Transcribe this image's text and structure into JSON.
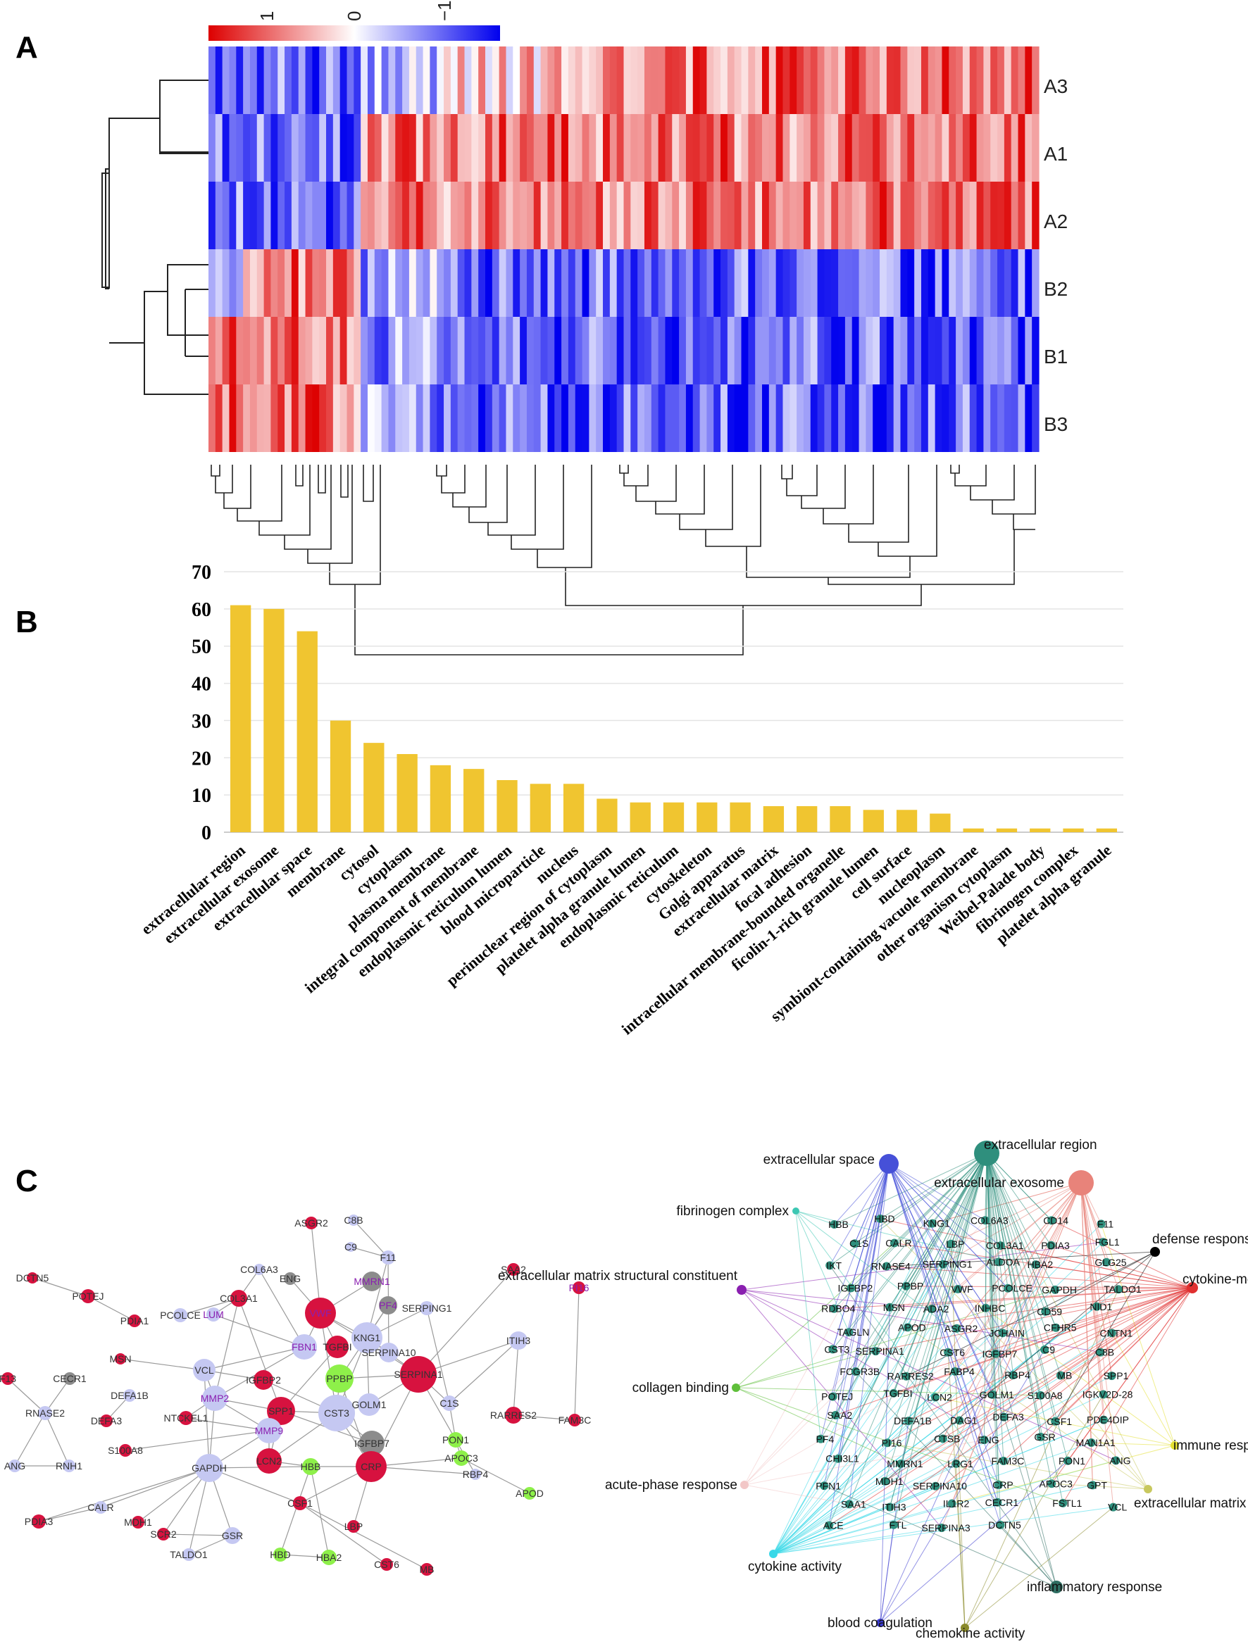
{
  "panels": {
    "a": "A",
    "b": "B",
    "c": "C"
  },
  "heatmap": {
    "colorbar_labels": [
      "1",
      "0",
      "−1"
    ],
    "rows": [
      "A3",
      "A1",
      "A2",
      "B2",
      "B1",
      "B3"
    ],
    "colors": {
      "high": "#dd0000",
      "mid": "#ffffff",
      "low": "#0000ee"
    }
  },
  "chart_data": [
    {
      "type": "heatmap",
      "title": "",
      "rows": [
        "A3",
        "A1",
        "A2",
        "B2",
        "B1",
        "B3"
      ],
      "value_range": [
        -1,
        1
      ],
      "n_columns": 120,
      "row_groups": {
        "A": [
          "A3",
          "A1",
          "A2"
        ],
        "B": [
          "B2",
          "B1",
          "B3"
        ]
      }
    },
    {
      "type": "bar",
      "title": "",
      "xlabel": "",
      "ylabel": "",
      "ylim": [
        0,
        70
      ],
      "yticks": [
        0,
        10,
        20,
        30,
        40,
        50,
        60,
        70
      ],
      "bar_color": "#f0c530",
      "categories": [
        "extracellular region",
        "extracellular exosome",
        "extracellular space",
        "membrane",
        "cytosol",
        "cytoplasm",
        "plasma membrane",
        "integral component of membrane",
        "endoplasmic reticulum lumen",
        "blood microparticle",
        "nucleus",
        "perinuclear region of cytoplasm",
        "platelet alpha granule lumen",
        "endoplasmic reticulum",
        "cytoskeleton",
        "Golgi apparatus",
        "extracellular matrix",
        "focal adhesion",
        "intracellular membrane-bounded organelle",
        "ficolin-1-rich granule lumen",
        "cell surface",
        "nucleoplasm",
        "symbiont-containing vacuole membrane",
        "other organism cytoplasm",
        "Weibel-Palade body",
        "fibrinogen complex",
        "platelet alpha granule"
      ],
      "values": [
        61,
        60,
        54,
        30,
        24,
        21,
        18,
        17,
        14,
        13,
        13,
        9,
        8,
        8,
        8,
        8,
        7,
        7,
        7,
        6,
        6,
        5,
        1,
        1,
        1,
        1,
        1
      ]
    }
  ],
  "network": {
    "colors": {
      "red": "#d7123f",
      "lavender": "#c5c8f2",
      "gray": "#8c8c8c",
      "green": "#8ef04a",
      "purple_text": "#8a1fb0"
    },
    "nodes": [
      "ASGR2",
      "C8B",
      "C9",
      "F11",
      "COL6A3",
      "ENG",
      "MMRN1",
      "PF4",
      "SERPING1",
      "SAA2",
      "PI16",
      "DCTN5",
      "POTEJ",
      "PDIA1",
      "PCOLCE",
      "LUM",
      "COL3A1",
      "VWF",
      "KNG1",
      "SERPINA10",
      "FBN1",
      "TGFBI",
      "ITIH3",
      "F13",
      "CECR1",
      "MSN",
      "VCL",
      "IGFBP2",
      "PPBP",
      "SERPINA1",
      "DEFA1B",
      "MMP2",
      "SPP1",
      "CST3",
      "GOLM1",
      "C1S",
      "RARRES2",
      "FAM3C",
      "RNASE2",
      "DEFA3",
      "NTCKEL1",
      "IGFBP7",
      "PON1",
      "ANG",
      "RNH1",
      "S100A8",
      "MMP9",
      "LCN2",
      "APOC3",
      "CRP",
      "GAPDH",
      "HBB",
      "RBP4",
      "APOD",
      "CALR",
      "PDIA3",
      "MDH1",
      "SCR2",
      "GSR",
      "TALDO1",
      "HBD",
      "HBA2",
      "CSF1",
      "LBP",
      "CST6",
      "MB"
    ]
  },
  "go_network": {
    "go_terms": [
      "extracellular space",
      "extracellular region",
      "extracellular exosome",
      "fibrinogen complex",
      "defense response to fungus",
      "extracellular matrix structural constituent",
      "cytokine-mediated signaling pathway",
      "collagen binding",
      "immune response",
      "acute-phase response",
      "extracellular matrix organization",
      "cytokine activity",
      "inflammatory response",
      "blood coagulation",
      "chemokine activity"
    ],
    "genes": [
      "HBB",
      "HBD",
      "KNG1",
      "COL6A3",
      "CD14",
      "F11",
      "C1S",
      "CALR",
      "LBP",
      "COL3A1",
      "PDIA3",
      "FGL1",
      "IKT",
      "RNASE4",
      "SERPING1",
      "ALDOA",
      "HBA2",
      "GLG25",
      "IGFBP2",
      "PPBP",
      "VWF",
      "PCOLCE",
      "GAPDH",
      "TALDO1",
      "RDBO4",
      "MSN",
      "ADA2",
      "INHBC",
      "CD59",
      "NID1",
      "TAGLN",
      "APOD",
      "ASGR2",
      "JCHAIN",
      "CFHR5",
      "CNTN1",
      "CST3",
      "SERPINA1",
      "CST6",
      "IGFBP7",
      "C9",
      "C8B",
      "FCGR3B",
      "RARRES2",
      "FABP4",
      "RBP4",
      "MB",
      "SPP1",
      "POTEJ",
      "TGFBI",
      "LCN2",
      "GOLM1",
      "S100A8",
      "IGKV2D-28",
      "SAA2",
      "DEFA1B",
      "DAG1",
      "DEFA3",
      "CSF1",
      "PDE4DIP",
      "PF4",
      "PI16",
      "CTSB",
      "ENG",
      "GSR",
      "MAN1A1",
      "CHI3L1",
      "MMRN1",
      "LRG1",
      "FAM3C",
      "PON1",
      "ANG",
      "PFN1",
      "MDH1",
      "SERPINA10",
      "CRP",
      "APOC3",
      "GPT",
      "SAA1",
      "ITIH3",
      "IL1R2",
      "CECR1",
      "FSTL1",
      "VCL",
      "ACE",
      "FTL",
      "SERPINA3",
      "DCTN5"
    ]
  }
}
